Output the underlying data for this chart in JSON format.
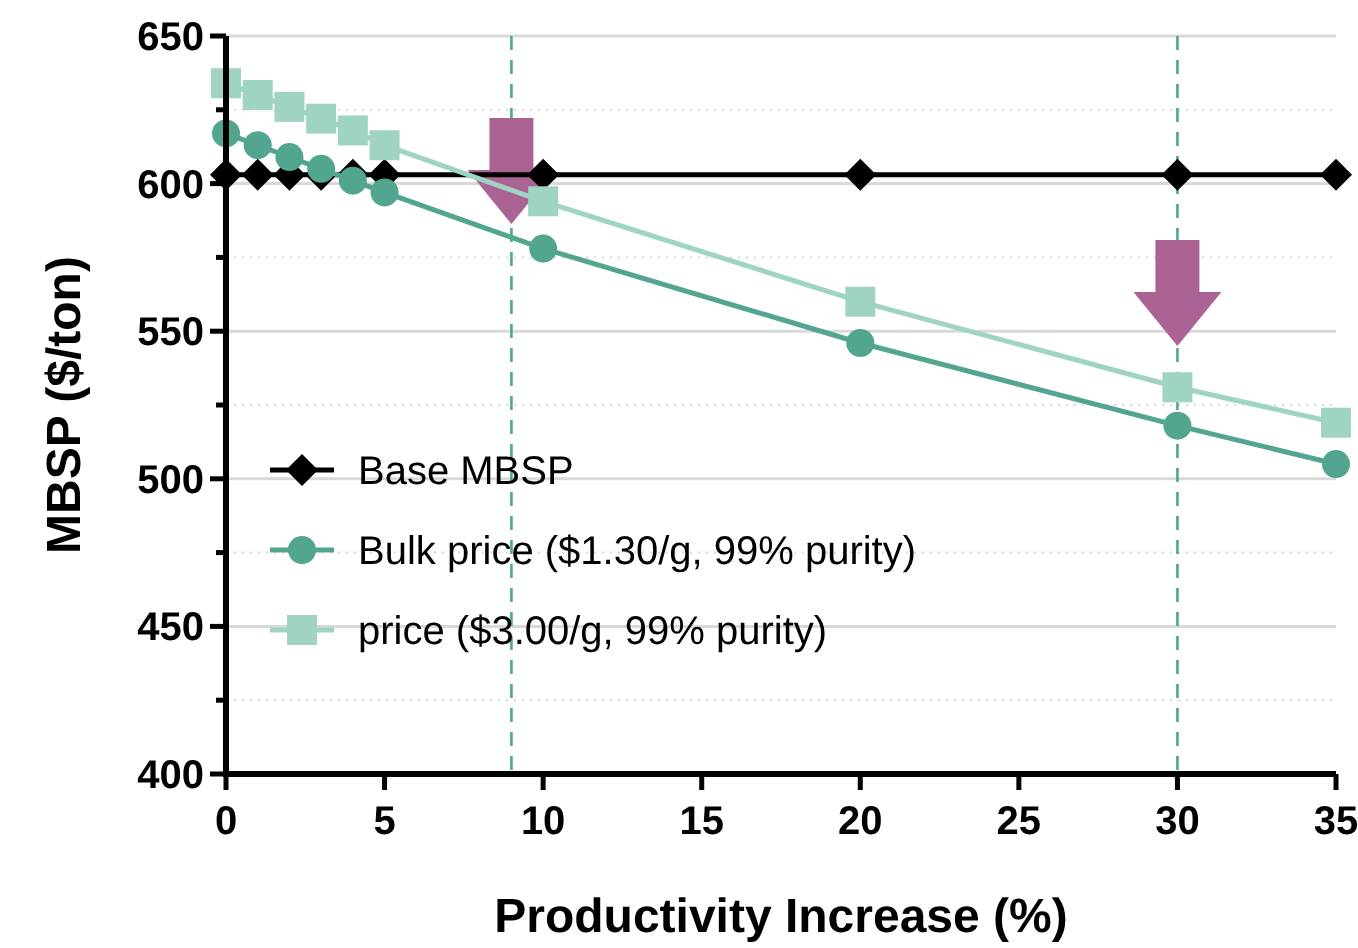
{
  "chart_data": {
    "type": "line",
    "xlabel": "Productivity Increase (%)",
    "ylabel": "MBSP ($/ton)",
    "xlim": [
      0,
      35
    ],
    "xticks": [
      0,
      5,
      10,
      15,
      20,
      25,
      30,
      35
    ],
    "ylim": [
      400,
      650
    ],
    "yticks": [
      400,
      {
        "value": 425,
        "label": null
      },
      450,
      {
        "value": 475,
        "label": null
      },
      500,
      {
        "value": 525,
        "label": null
      },
      550,
      {
        "value": 575,
        "label": null
      },
      600,
      {
        "value": 625,
        "label": null
      },
      650
    ],
    "grid": "y",
    "legend": "bottom left",
    "line_style": "solid",
    "ref_lines": [
      {
        "axis": "x",
        "value": 9,
        "color": "#4ea88e",
        "line_style": "dashed"
      },
      {
        "axis": "x",
        "value": 30,
        "color": "#4ea88e",
        "line_style": "dashed"
      }
    ],
    "series": [
      {
        "name": "Base MBSP",
        "color": "#000000",
        "marker": "diamond",
        "x": [
          0,
          1,
          2,
          3,
          4,
          5,
          10,
          20,
          30,
          35
        ],
        "values": [
          603,
          603,
          603,
          603,
          603,
          603,
          603,
          603,
          603,
          603
        ]
      },
      {
        "name": "Bulk price ($1.30/g, 99% purity)",
        "color": "#52a58f",
        "marker": "circle",
        "x": [
          0,
          1,
          2,
          3,
          4,
          5,
          10,
          20,
          30,
          35
        ],
        "values": [
          617,
          613,
          609,
          605,
          601,
          597,
          578,
          546,
          518,
          505
        ]
      },
      {
        "name": "price ($3.00/g, 99% purity)",
        "color": "#9fd3c3",
        "marker": "square",
        "x": [
          0,
          1,
          2,
          3,
          4,
          5,
          10,
          20,
          30,
          35
        ],
        "values": [
          634,
          630,
          626,
          622,
          618,
          613,
          594,
          560,
          531,
          519
        ]
      }
    ]
  }
}
